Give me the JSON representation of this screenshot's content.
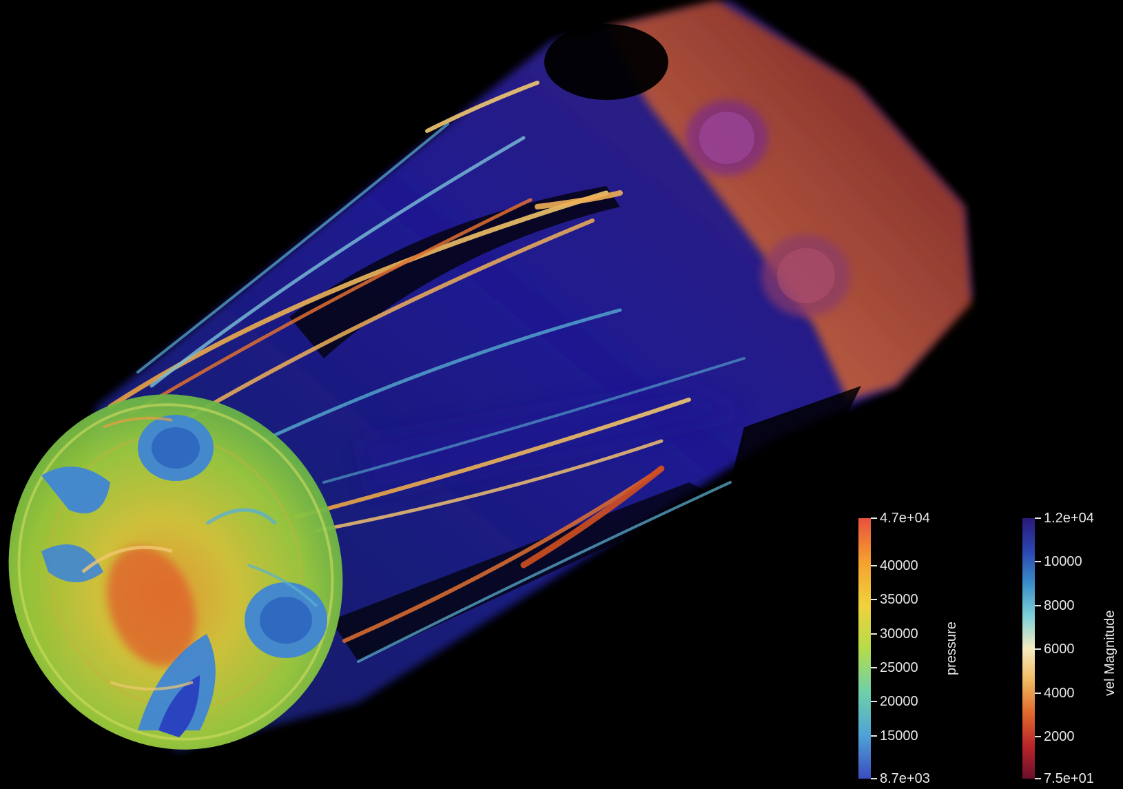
{
  "colors": {
    "background": "#000000",
    "shell_blue": "#2a22c8",
    "hot_red": "#8e2416",
    "nozzle_blue": "#3f86d4",
    "dome_green": "#b8cc3a"
  },
  "colorbars": [
    {
      "id": "pressure",
      "title": "pressure",
      "range": [
        8700,
        47000
      ],
      "stops": [
        "#3b4cc0",
        "#4fa3d6",
        "#6fd0a8",
        "#b5dc4a",
        "#f0d23c",
        "#f5a030",
        "#e8513c"
      ],
      "ticks": [
        {
          "value": 47000,
          "label": "4.7e+04"
        },
        {
          "value": 40000,
          "label": "40000"
        },
        {
          "value": 35000,
          "label": "35000"
        },
        {
          "value": 30000,
          "label": "30000"
        },
        {
          "value": 25000,
          "label": "25000"
        },
        {
          "value": 20000,
          "label": "20000"
        },
        {
          "value": 15000,
          "label": "15000"
        },
        {
          "value": 8700,
          "label": "8.7e+03"
        }
      ]
    },
    {
      "id": "vel-magnitude",
      "title": "vel Magnitude",
      "range": [
        75,
        12000
      ],
      "stops": [
        "#6a0f2a",
        "#b8262a",
        "#e0682c",
        "#f0b860",
        "#f6ecc0",
        "#7ed0d8",
        "#3a8ec8",
        "#2b45b0",
        "#2a1a7a"
      ],
      "ticks": [
        {
          "value": 12000,
          "label": "1.2e+04"
        },
        {
          "value": 10000,
          "label": "10000"
        },
        {
          "value": 8000,
          "label": "8000"
        },
        {
          "value": 6000,
          "label": "6000"
        },
        {
          "value": 4000,
          "label": "4000"
        },
        {
          "value": 2000,
          "label": "2000"
        },
        {
          "value": 75,
          "label": "7.5e+01"
        }
      ]
    }
  ]
}
